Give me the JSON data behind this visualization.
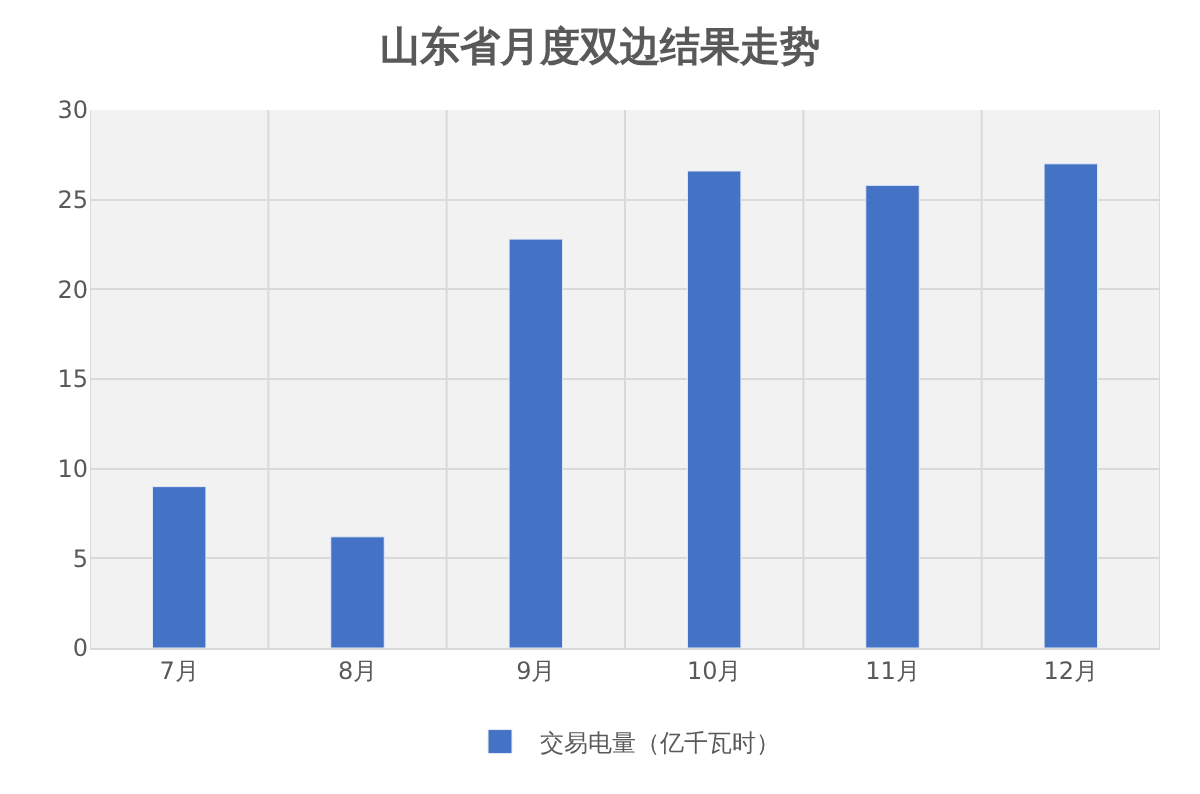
{
  "chart_data": {
    "type": "bar",
    "title": "山东省月度双边结果走势",
    "categories": [
      "7月",
      "8月",
      "9月",
      "10月",
      "11月",
      "12月"
    ],
    "series": [
      {
        "name": "交易电量（亿千瓦时）",
        "color": "#4472c4",
        "values": [
          9.0,
          6.2,
          22.8,
          26.6,
          25.8,
          27.0
        ]
      }
    ],
    "ylim": [
      0,
      30
    ],
    "yticks": [
      0,
      5,
      10,
      15,
      20,
      25,
      30
    ],
    "grid": true,
    "legend": "bottom"
  }
}
